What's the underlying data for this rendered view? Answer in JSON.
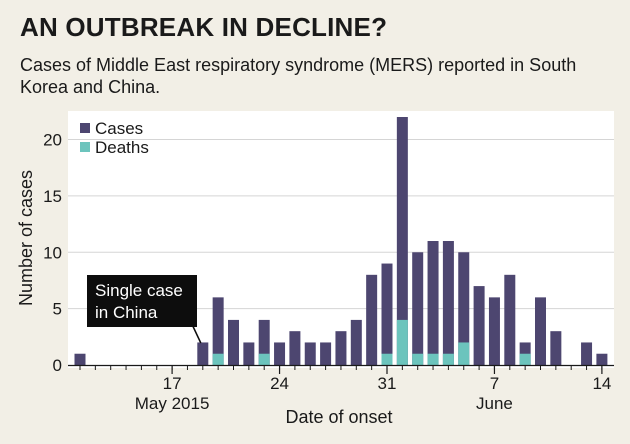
{
  "chart_data": {
    "type": "bar",
    "title": "AN OUTBREAK IN DECLINE?",
    "subtitle": "Cases of Middle East respiratory syndrome (MERS) reported in South Korea and China.",
    "xlabel": "Date of onset",
    "ylabel": "Number of cases",
    "ylim": [
      0,
      22
    ],
    "yticks": [
      0,
      5,
      10,
      15,
      20
    ],
    "grid": true,
    "legend_position": "top-left",
    "start_day": 11,
    "end_day": 45,
    "x_ticks": [
      {
        "day": 17,
        "label": "17"
      },
      {
        "day": 24,
        "label": "24"
      },
      {
        "day": 31,
        "label": "31"
      },
      {
        "day": 38,
        "label": "7"
      },
      {
        "day": 45,
        "label": "14"
      }
    ],
    "month_labels": [
      {
        "day": 17,
        "label": "May 2015"
      },
      {
        "day": 38,
        "label": "June"
      }
    ],
    "annotation": {
      "day": 19,
      "lines": [
        "Single case",
        "in China"
      ]
    },
    "series": [
      {
        "name": "Cases",
        "color": "#4d4670",
        "values": [
          1,
          0,
          0,
          0,
          0,
          0,
          0,
          0,
          2,
          6,
          4,
          2,
          4,
          2,
          3,
          2,
          2,
          3,
          4,
          8,
          9,
          22,
          10,
          11,
          11,
          10,
          7,
          6,
          8,
          2,
          6,
          3,
          0,
          2,
          1
        ]
      },
      {
        "name": "Deaths",
        "color": "#6cc4bd",
        "values": [
          0,
          0,
          0,
          0,
          0,
          0,
          0,
          0,
          0,
          1,
          0,
          0,
          1,
          0,
          0,
          0,
          0,
          0,
          0,
          0,
          1,
          4,
          1,
          1,
          1,
          2,
          0,
          0,
          0,
          1,
          0,
          0,
          0,
          0,
          0
        ]
      }
    ]
  }
}
